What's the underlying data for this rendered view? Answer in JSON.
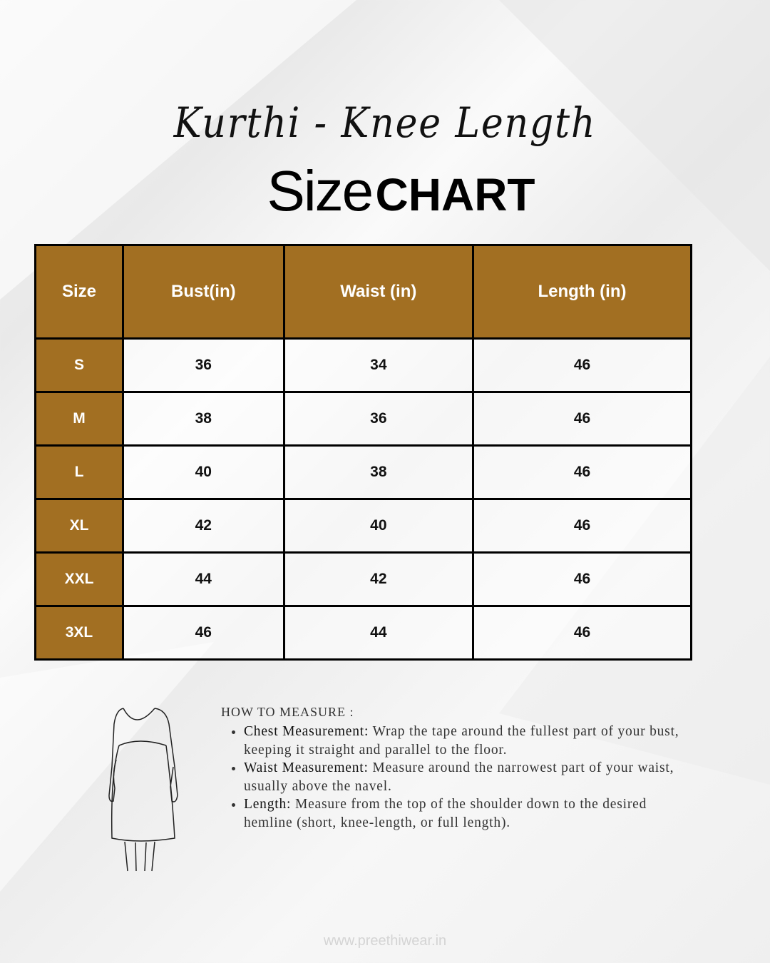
{
  "header": {
    "script_title": "Kurthi - Knee Length",
    "title_word1": "Size",
    "title_word2": "CHART"
  },
  "colors": {
    "header_bg": "#A26F22",
    "border": "#000000"
  },
  "table": {
    "columns": [
      "Size",
      "Bust(in)",
      "Waist (in)",
      "Length (in)"
    ],
    "rows": [
      [
        "S",
        "36",
        "34",
        "46"
      ],
      [
        "M",
        "38",
        "36",
        "46"
      ],
      [
        "L",
        "40",
        "38",
        "46"
      ],
      [
        "XL",
        "42",
        "40",
        "46"
      ],
      [
        "XXL",
        "44",
        "42",
        "46"
      ],
      [
        "3XL",
        "46",
        "44",
        "46"
      ]
    ]
  },
  "how_to_measure": {
    "heading": "HOW TO MEASURE :",
    "items": [
      {
        "label": "Chest Measurement:",
        "text": " Wrap the tape around the fullest part of your bust, keeping it straight and parallel to the floor."
      },
      {
        "label": "Waist Measurement:",
        "text": " Measure around the narrowest part of your waist, usually above the navel."
      },
      {
        "label": "Length:",
        "text": " Measure from the top of the shoulder down to the desired hemline (short, knee-length, or full length)."
      }
    ]
  },
  "footer": {
    "website": "www.preethiwear.in"
  },
  "icons": {
    "illustration": "dress-outline-illustration",
    "arrow": "curly-arrow-icon"
  }
}
